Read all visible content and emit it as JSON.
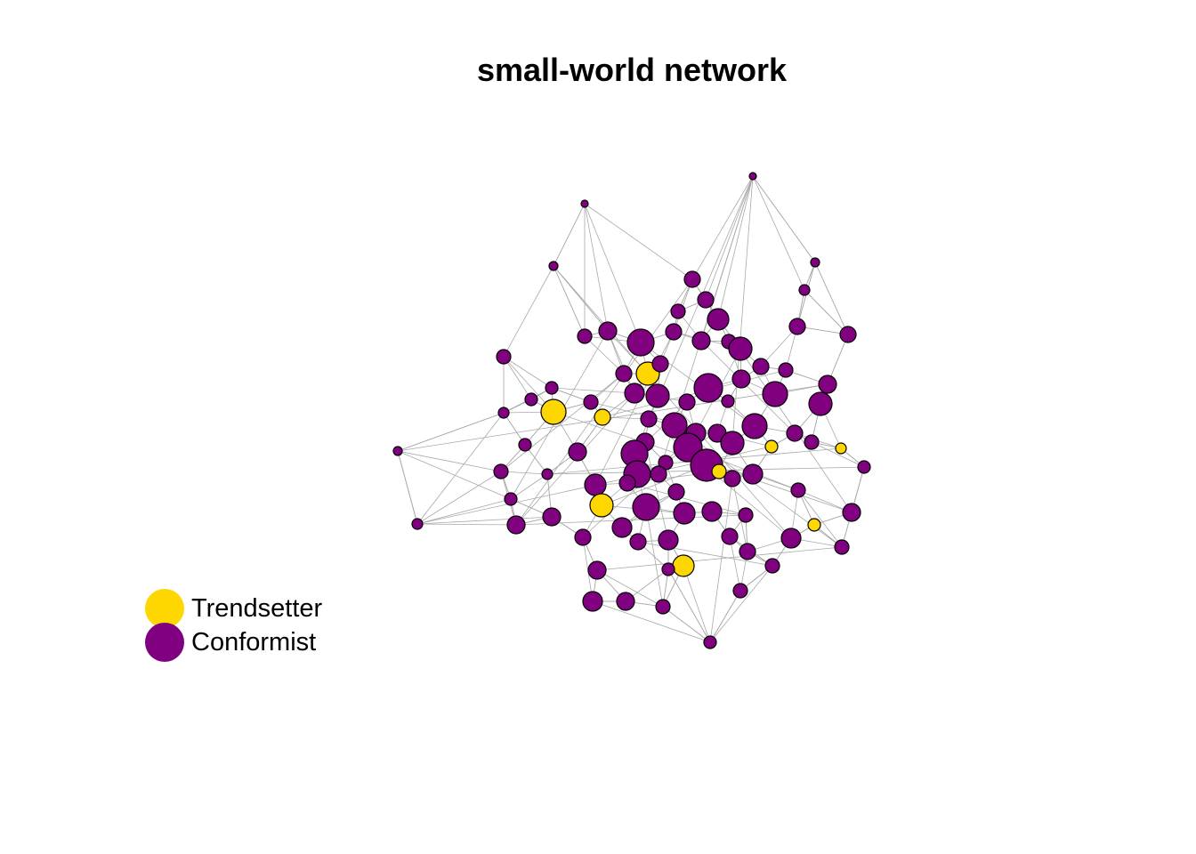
{
  "title": "small-world network",
  "legend": [
    {
      "label": "Trendsetter",
      "color": "#FFD700"
    },
    {
      "label": "Conformist",
      "color": "#800080"
    }
  ],
  "colors": {
    "edge": "#a9a9a9",
    "node_border": "#000000"
  }
}
